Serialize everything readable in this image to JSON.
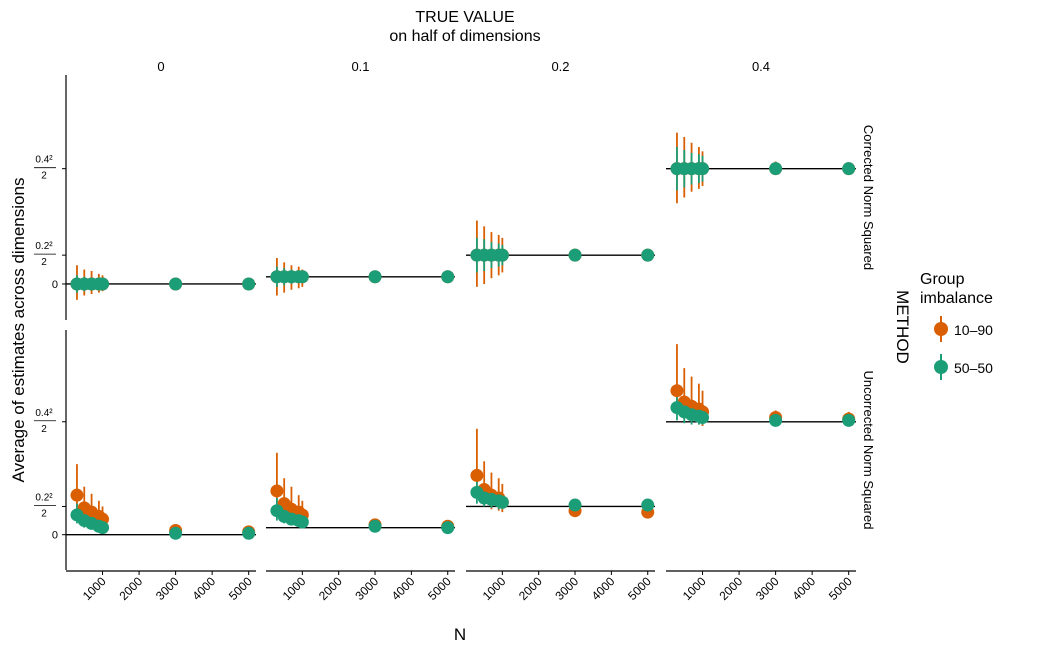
{
  "figure": {
    "title_line1": "TRUE VALUE",
    "title_line2": "on half of dimensions",
    "facet_right_label": "METHOD",
    "xlabel": "N",
    "ylabel": "Average of estimates across dimensions"
  },
  "legend": {
    "title_line1": "Group",
    "title_line2": "imbalance",
    "items": [
      {
        "label": "10–90",
        "color": "#D95F02"
      },
      {
        "label": "50–50",
        "color": "#1B9E77"
      }
    ]
  },
  "chart_data": {
    "type": "scatter",
    "subtype": "point-range faceted",
    "columns": [
      {
        "label": "0",
        "true_value": 0
      },
      {
        "label": "0.1",
        "true_value": 0.1
      },
      {
        "label": "0.2",
        "true_value": 0.2
      },
      {
        "label": "0.4",
        "true_value": 0.4
      }
    ],
    "rows": [
      {
        "label": "Corrected Norm Squared"
      },
      {
        "label": "Uncorrected Norm Squared"
      }
    ],
    "x_ticks": [
      1000,
      2000,
      3000,
      4000,
      5000
    ],
    "xlim": [
      0,
      5200
    ],
    "y_ticks": [
      {
        "value": 0,
        "label": "0",
        "kind": "plain"
      },
      {
        "value": 0.02,
        "num": "0.2²",
        "den": "2",
        "kind": "frac"
      },
      {
        "value": 0.08,
        "num": "0.4²",
        "den": "2",
        "kind": "frac"
      }
    ],
    "ylim": [
      -0.025,
      0.145
    ],
    "reference_lines": [
      [
        0,
        0.005,
        0.02,
        0.08
      ],
      [
        0,
        0.005,
        0.02,
        0.08
      ]
    ],
    "x": [
      300,
      500,
      700,
      900,
      1000,
      3000,
      5000
    ],
    "series": [
      {
        "name": "10–90",
        "color": "#D95F02",
        "panels": [
          {
            "row": 0,
            "col": 0,
            "y": [
              0,
              0,
              0,
              0,
              0,
              0,
              0
            ],
            "lo": [
              -0.011,
              -0.008,
              -0.007,
              -0.006,
              -0.005,
              -0.002,
              -0.0015
            ],
            "hi": [
              0.013,
              0.01,
              0.009,
              0.007,
              0.006,
              0.0025,
              0.002
            ]
          },
          {
            "row": 0,
            "col": 1,
            "y": [
              0.005,
              0.005,
              0.005,
              0.005,
              0.005,
              0.005,
              0.005
            ],
            "lo": [
              -0.008,
              -0.006,
              -0.004,
              -0.003,
              -0.002,
              0.002,
              0.003
            ],
            "hi": [
              0.018,
              0.015,
              0.013,
              0.012,
              0.01,
              0.008,
              0.007
            ]
          },
          {
            "row": 0,
            "col": 2,
            "y": [
              0.02,
              0.02,
              0.02,
              0.02,
              0.02,
              0.02,
              0.02
            ],
            "lo": [
              -0.002,
              0.0,
              0.004,
              0.006,
              0.008,
              0.016,
              0.017
            ],
            "hi": [
              0.044,
              0.04,
              0.036,
              0.034,
              0.032,
              0.024,
              0.023
            ]
          },
          {
            "row": 0,
            "col": 3,
            "y": [
              0.08,
              0.08,
              0.08,
              0.08,
              0.08,
              0.08,
              0.08
            ],
            "lo": [
              0.056,
              0.06,
              0.064,
              0.066,
              0.068,
              0.076,
              0.077
            ],
            "hi": [
              0.105,
              0.102,
              0.098,
              0.095,
              0.092,
              0.085,
              0.084
            ]
          },
          {
            "row": 1,
            "col": 0,
            "y": [
              0.028,
              0.019,
              0.016,
              0.013,
              0.011,
              0.003,
              0.002
            ],
            "lo": [
              0.015,
              0.01,
              0.008,
              0.007,
              0.006,
              0.001,
              0.0
            ],
            "hi": [
              0.05,
              0.034,
              0.029,
              0.024,
              0.02,
              0.006,
              0.004
            ]
          },
          {
            "row": 1,
            "col": 1,
            "y": [
              0.031,
              0.022,
              0.018,
              0.016,
              0.014,
              0.007,
              0.006
            ],
            "lo": [
              0.016,
              0.012,
              0.01,
              0.009,
              0.008,
              0.004,
              0.004
            ],
            "hi": [
              0.058,
              0.04,
              0.034,
              0.028,
              0.024,
              0.01,
              0.009
            ]
          },
          {
            "row": 1,
            "col": 2,
            "y": [
              0.042,
              0.032,
              0.028,
              0.026,
              0.023,
              0.017,
              0.016
            ],
            "lo": [
              0.026,
              0.021,
              0.018,
              0.017,
              0.016,
              0.014,
              0.013
            ],
            "hi": [
              0.075,
              0.052,
              0.044,
              0.04,
              0.036,
              0.021,
              0.02
            ]
          },
          {
            "row": 1,
            "col": 3,
            "y": [
              0.102,
              0.094,
              0.091,
              0.089,
              0.087,
              0.083,
              0.082
            ],
            "lo": [
              0.085,
              0.082,
              0.08,
              0.078,
              0.077,
              0.078,
              0.078
            ],
            "hi": [
              0.135,
              0.118,
              0.112,
              0.107,
              0.102,
              0.088,
              0.087
            ]
          }
        ]
      },
      {
        "name": "50–50",
        "color": "#1B9E77",
        "panels": [
          {
            "row": 0,
            "col": 0,
            "y": [
              0,
              0,
              0,
              0,
              0,
              0,
              0
            ],
            "lo": [
              -0.006,
              -0.005,
              -0.004,
              -0.003,
              -0.003,
              -0.001,
              -0.001
            ],
            "hi": [
              0.006,
              0.005,
              0.004,
              0.003,
              0.003,
              0.001,
              0.001
            ]
          },
          {
            "row": 0,
            "col": 1,
            "y": [
              0.005,
              0.005,
              0.005,
              0.005,
              0.005,
              0.005,
              0.005
            ],
            "lo": [
              -0.002,
              -0.001,
              0.0,
              0.001,
              0.001,
              0.003,
              0.003
            ],
            "hi": [
              0.012,
              0.011,
              0.01,
              0.009,
              0.009,
              0.007,
              0.007
            ]
          },
          {
            "row": 0,
            "col": 2,
            "y": [
              0.02,
              0.02,
              0.02,
              0.02,
              0.02,
              0.02,
              0.02
            ],
            "lo": [
              0.008,
              0.009,
              0.011,
              0.012,
              0.013,
              0.018,
              0.018
            ],
            "hi": [
              0.032,
              0.031,
              0.029,
              0.028,
              0.027,
              0.022,
              0.022
            ]
          },
          {
            "row": 0,
            "col": 3,
            "y": [
              0.08,
              0.08,
              0.08,
              0.08,
              0.08,
              0.08,
              0.08
            ],
            "lo": [
              0.065,
              0.067,
              0.069,
              0.07,
              0.071,
              0.078,
              0.078
            ],
            "hi": [
              0.095,
              0.093,
              0.091,
              0.09,
              0.089,
              0.082,
              0.082
            ]
          },
          {
            "row": 1,
            "col": 0,
            "y": [
              0.014,
              0.01,
              0.008,
              0.006,
              0.005,
              0.001,
              0.001
            ],
            "lo": [
              0.008,
              0.005,
              0.004,
              0.003,
              0.002,
              0.0,
              0.0
            ],
            "hi": [
              0.022,
              0.016,
              0.013,
              0.01,
              0.009,
              0.002,
              0.002
            ]
          },
          {
            "row": 1,
            "col": 1,
            "y": [
              0.017,
              0.013,
              0.011,
              0.01,
              0.009,
              0.006,
              0.005
            ],
            "lo": [
              0.01,
              0.008,
              0.007,
              0.006,
              0.006,
              0.004,
              0.004
            ],
            "hi": [
              0.026,
              0.02,
              0.016,
              0.014,
              0.013,
              0.008,
              0.007
            ]
          },
          {
            "row": 1,
            "col": 2,
            "y": [
              0.03,
              0.026,
              0.025,
              0.024,
              0.023,
              0.021,
              0.021
            ],
            "lo": [
              0.022,
              0.02,
              0.019,
              0.018,
              0.018,
              0.019,
              0.019
            ],
            "hi": [
              0.04,
              0.034,
              0.031,
              0.03,
              0.029,
              0.023,
              0.023
            ]
          },
          {
            "row": 1,
            "col": 3,
            "y": [
              0.09,
              0.087,
              0.085,
              0.084,
              0.083,
              0.081,
              0.081
            ],
            "lo": [
              0.081,
              0.079,
              0.078,
              0.078,
              0.078,
              0.079,
              0.079
            ],
            "hi": [
              0.101,
              0.097,
              0.094,
              0.092,
              0.09,
              0.083,
              0.083
            ]
          }
        ]
      }
    ]
  }
}
